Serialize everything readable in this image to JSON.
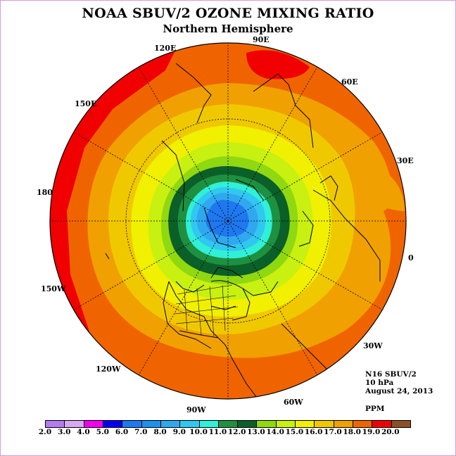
{
  "title": "NOAA SBUV/2 OZONE MIXING RATIO",
  "subtitle": "Northern Hemisphere",
  "longitude_labels": {
    "lon_0": "0",
    "lon_30e": "30E",
    "lon_60e": "60E",
    "lon_90e": "90E",
    "lon_120e": "120E",
    "lon_150e": "150E",
    "lon_180": "180",
    "lon_150w": "150W",
    "lon_120w": "120W",
    "lon_90w": "90W",
    "lon_60w": "60W",
    "lon_30w": "30W"
  },
  "info": {
    "instrument": "N16 SBUV/2",
    "level": "10 hPa",
    "date": "August 24, 2013"
  },
  "units": "PPM",
  "colorbar": {
    "labels": [
      "2.0",
      "3.0",
      "4.0",
      "5.0",
      "6.0",
      "7.0",
      "8.0",
      "9.0",
      "10.0",
      "11.0",
      "12.0",
      "13.0",
      "14.0",
      "15.0",
      "16.0",
      "17.0",
      "18.0",
      "19.0",
      "20.0"
    ],
    "colors": [
      "#b57cf0",
      "#d9a9f0",
      "#f000f0",
      "#0000f0",
      "#1e78f0",
      "#1e90f0",
      "#30a8f0",
      "#30c8f0",
      "#30f0d8",
      "#1e9040",
      "#0a6028",
      "#90d810",
      "#c8f010",
      "#f0f000",
      "#f0c800",
      "#f0a000",
      "#f06400",
      "#f00000",
      "#8c5028"
    ]
  },
  "map": {
    "projection": "north-polar-stereographic",
    "colors": {
      "deep_blue": "#1e78f0",
      "blue": "#30a8f0",
      "light_blue": "#30c8f0",
      "cyan": "#30f0d8",
      "green": "#1e9040",
      "dark_green": "#0a6028",
      "lime": "#90d810",
      "yellow_green": "#c8f010",
      "yellow": "#f0f000",
      "gold": "#f0c800",
      "orange": "#f0a000",
      "dark_orange": "#f06400",
      "red": "#f00000"
    }
  }
}
